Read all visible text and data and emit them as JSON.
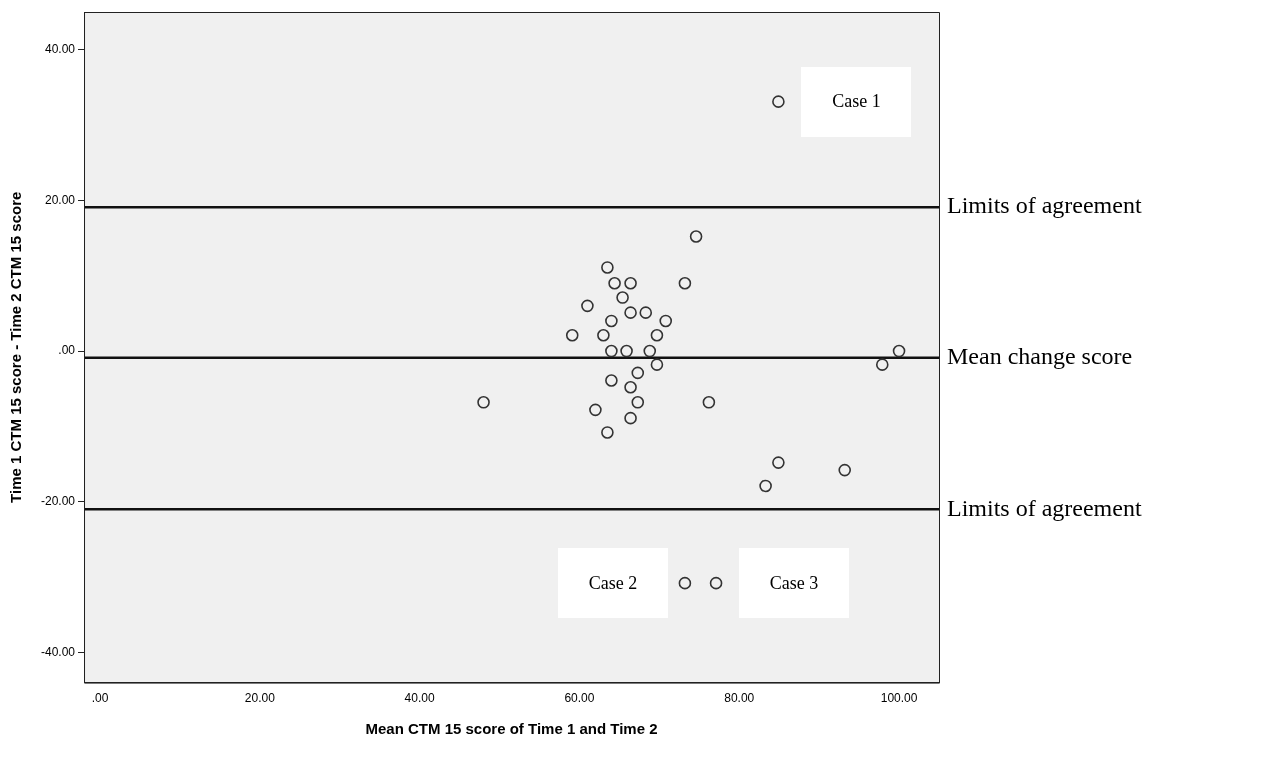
{
  "chart_data": {
    "type": "scatter",
    "xlabel": "Mean CTM 15 score of Time 1 and Time 2",
    "ylabel": "Time 1 CTM 15 score - Time 2 CTM 15 score",
    "x": [
      84.9,
      74.6,
      63.5,
      64.4,
      66.4,
      73.2,
      65.4,
      61.0,
      66.4,
      68.3,
      64.0,
      70.8,
      59.1,
      63.0,
      69.7,
      64.0,
      65.9,
      68.8,
      100.0,
      69.7,
      97.9,
      67.3,
      64.0,
      66.4,
      48.0,
      67.3,
      76.2,
      62.0,
      66.4,
      63.5,
      84.9,
      93.2,
      83.3,
      73.2,
      77.1
    ],
    "series": [
      {
        "color": "#333333",
        "values": [
          33.1,
          15.2,
          11.1,
          9.0,
          9.0,
          9.0,
          7.1,
          6.0,
          5.1,
          5.1,
          4.0,
          4.0,
          2.1,
          2.1,
          2.1,
          0.0,
          0.0,
          0.0,
          0.0,
          -1.8,
          -1.8,
          -2.9,
          -3.9,
          -4.8,
          -6.8,
          -6.8,
          -6.8,
          -7.8,
          -8.9,
          -10.8,
          -14.8,
          -15.8,
          -17.9,
          -30.8,
          -30.8
        ]
      }
    ],
    "marker": "circle",
    "xlim": [
      -2,
      105
    ],
    "ylim": [
      -44,
      45
    ],
    "xticks": [
      {
        "value": 0,
        "label": ".00"
      },
      {
        "value": 20,
        "label": "20.00"
      },
      {
        "value": 40,
        "label": "40.00"
      },
      {
        "value": 60,
        "label": "60.00"
      },
      {
        "value": 80,
        "label": "80.00"
      },
      {
        "value": 100,
        "label": "100.00"
      }
    ],
    "yticks": [
      {
        "value": -40,
        "label": "-40.00"
      },
      {
        "value": -20,
        "label": "-20.00"
      },
      {
        "value": 0,
        "label": ".00"
      },
      {
        "value": 20,
        "label": "20.00"
      },
      {
        "value": 40,
        "label": "40.00"
      }
    ],
    "ref_lines": [
      {
        "axis": "y",
        "value": 19.1,
        "label": "Limits of agreement"
      },
      {
        "axis": "y",
        "value": -0.9,
        "label": "Mean change score"
      },
      {
        "axis": "y",
        "value": -21.0,
        "label": "Limits of agreement"
      }
    ],
    "annotations": [
      {
        "text": "Case 1",
        "x": 84.9,
        "y": 33.1
      },
      {
        "text": "Case 2",
        "x": 73.2,
        "y": -30.8
      },
      {
        "text": "Case 3",
        "x": 77.1,
        "y": -30.8
      }
    ],
    "grid": false,
    "legend": false
  }
}
